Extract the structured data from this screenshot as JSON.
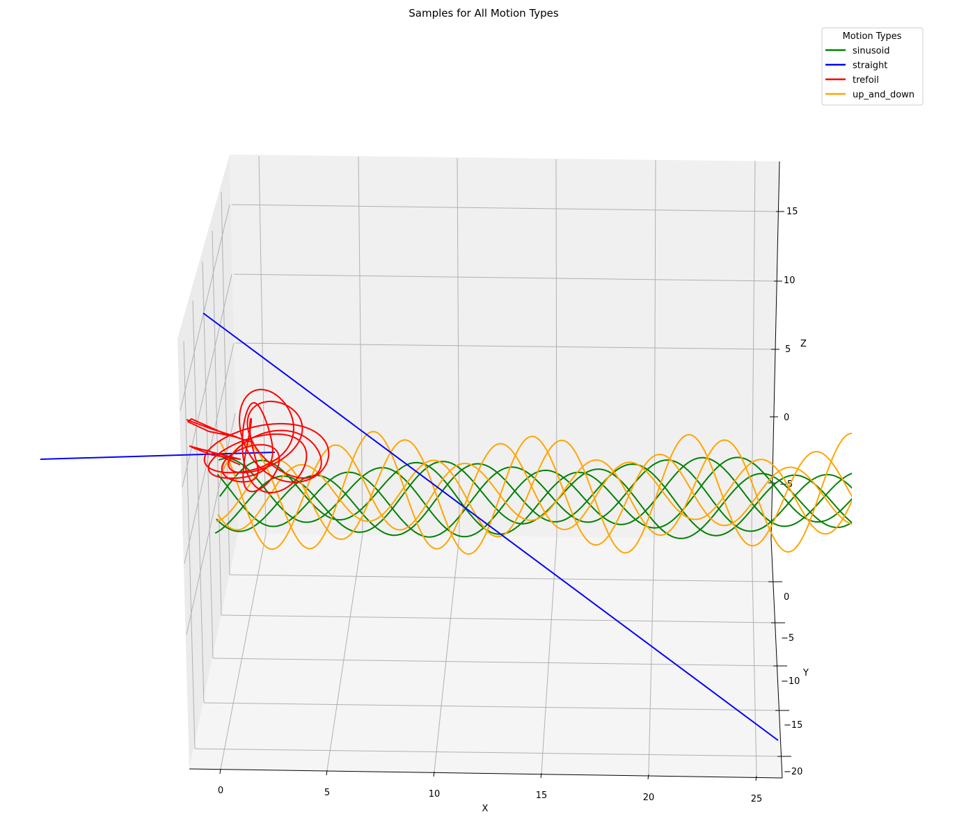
{
  "chart_data": {
    "type": "line",
    "projection": "3d",
    "title": "Samples for All Motion Types",
    "xlabel": "X",
    "ylabel": "Y",
    "zlabel": "Z",
    "xlim": [
      -1.5,
      26
    ],
    "ylim": [
      -21,
      7
    ],
    "zlim": [
      -10,
      18
    ],
    "x_ticks": [
      "0",
      "5",
      "10",
      "15",
      "20",
      "25"
    ],
    "y_ticks": [
      "0",
      "−5",
      "−10",
      "−15",
      "−20"
    ],
    "z_ticks": [
      "15",
      "10",
      "5",
      "0",
      "−5"
    ],
    "grid": true,
    "legend": {
      "title": "Motion Types",
      "placement": "top-right",
      "entries": [
        "sinusoid",
        "straight",
        "trefoil",
        "up_and_down"
      ]
    },
    "series": [
      {
        "name": "sinusoid",
        "color": "#008000",
        "description_values": {
          "x_range": [
            0,
            30
          ],
          "z_center": -3,
          "amplitude": 2.5
        }
      },
      {
        "name": "straight",
        "color": "#0000ff",
        "start": [
          -1,
          0,
          8
        ],
        "end": [
          26,
          -17,
          -12
        ]
      },
      {
        "name": "trefoil",
        "color": "#ff0000",
        "x_range": [
          -1,
          4
        ],
        "z_range": [
          -6,
          1
        ]
      },
      {
        "name": "up_and_down",
        "color": "#ffa500",
        "x_range": [
          0,
          30
        ],
        "z_center": -3,
        "amplitude": 4
      }
    ]
  }
}
